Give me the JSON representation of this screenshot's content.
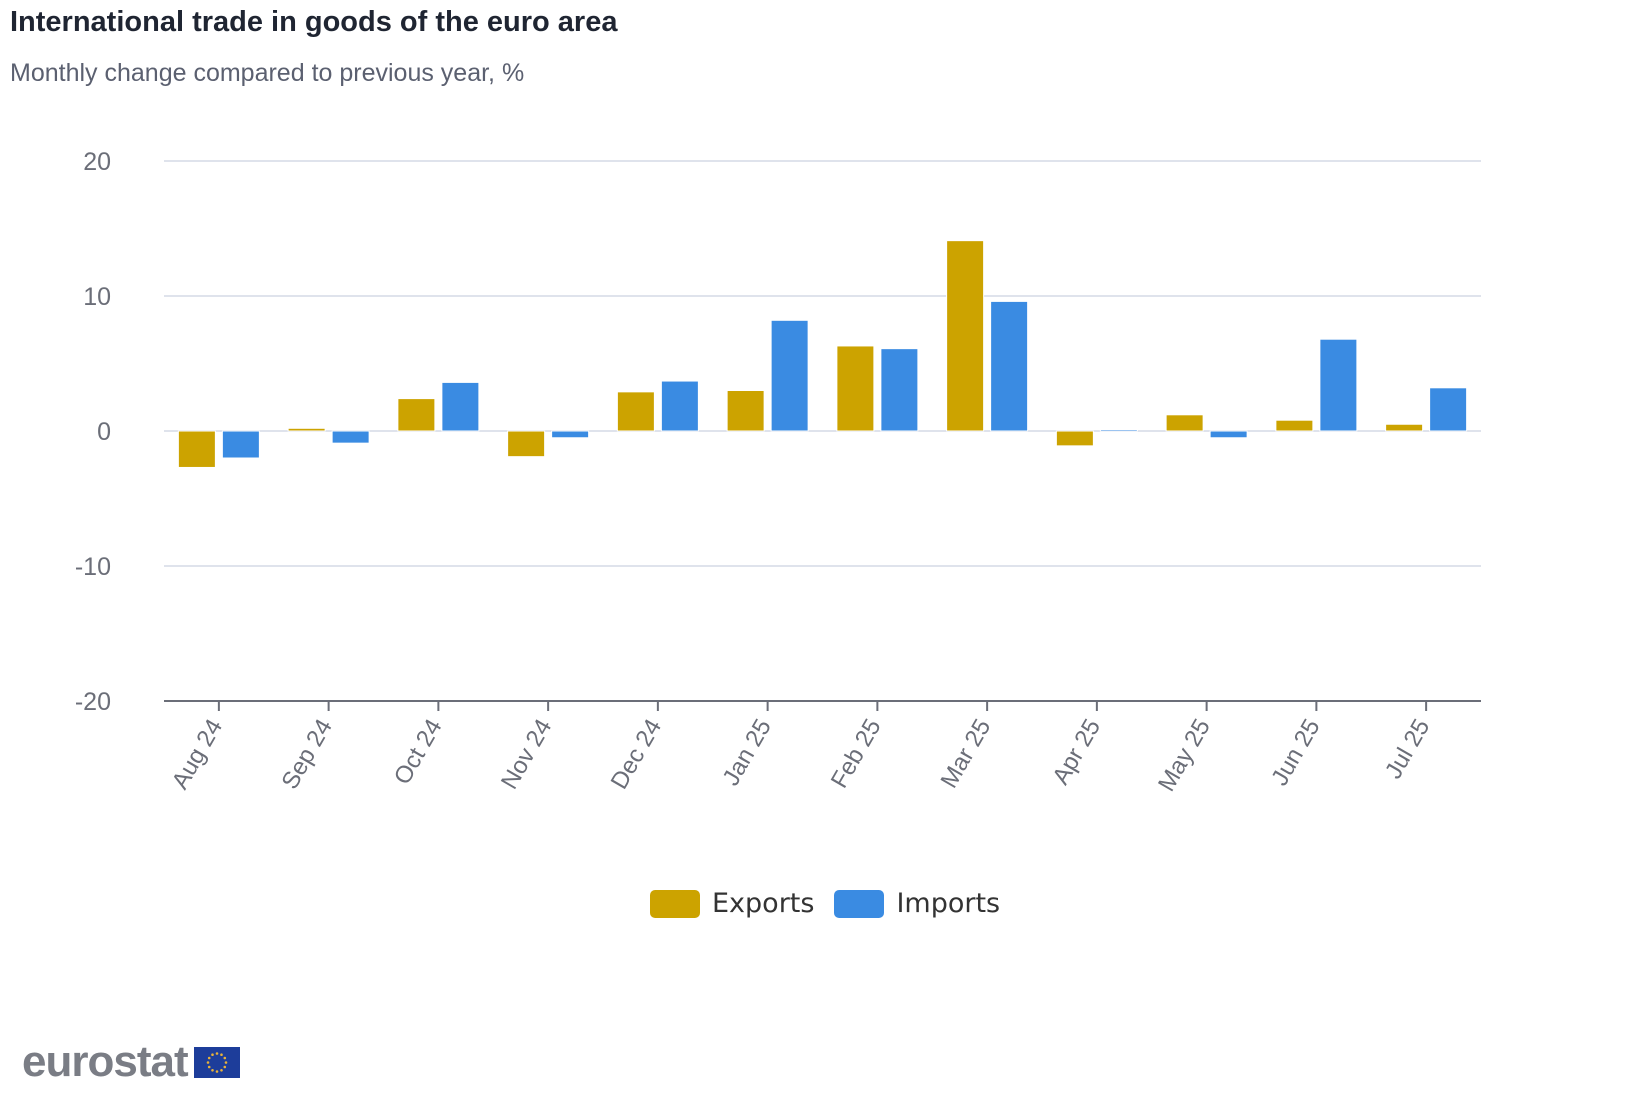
{
  "header": {
    "title": "International trade in goods of the euro area",
    "subtitle": "Monthly change compared to previous year, %"
  },
  "colors": {
    "exports": "#cca300",
    "imports": "#3a8be2",
    "grid": "#dfe3ec",
    "axis": "#6b6e78"
  },
  "chart_data": {
    "type": "bar",
    "title": "International trade in goods of the euro area",
    "subtitle": "Monthly change compared to previous year, %",
    "xlabel": "",
    "ylabel": "",
    "ylim": [
      -20,
      20
    ],
    "yticks": [
      20,
      10,
      0,
      -10,
      -20
    ],
    "grid": true,
    "legend_position": "bottom-center",
    "categories": [
      "Aug 24",
      "Sep 24",
      "Oct 24",
      "Nov 24",
      "Dec 24",
      "Jan 25",
      "Feb 25",
      "Mar 25",
      "Apr 25",
      "May 25",
      "Jun 25",
      "Jul 25"
    ],
    "series": [
      {
        "name": "Exports",
        "values": [
          -2.7,
          0.2,
          2.4,
          -1.9,
          2.9,
          3.0,
          6.3,
          14.1,
          -1.1,
          1.2,
          0.8,
          0.5
        ]
      },
      {
        "name": "Imports",
        "values": [
          -2.0,
          -0.9,
          3.6,
          -0.5,
          3.7,
          8.2,
          6.1,
          9.6,
          0.1,
          -0.5,
          6.8,
          3.2
        ]
      }
    ]
  },
  "legend": [
    {
      "label": "Exports"
    },
    {
      "label": "Imports"
    }
  ],
  "logo": {
    "text": "eurostat",
    "flag_icon": "eu-flag-icon"
  }
}
